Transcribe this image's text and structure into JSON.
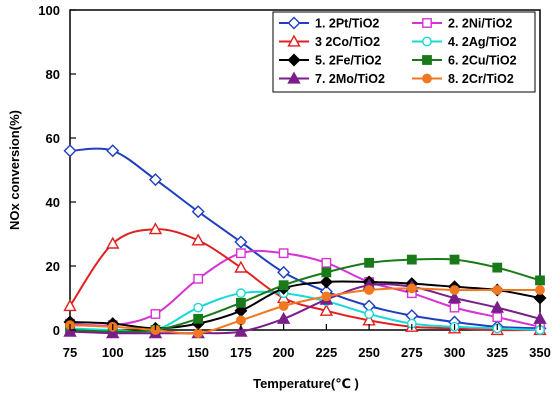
{
  "chart_data": {
    "type": "line",
    "title": "",
    "xlabel": "Temperature(℃ )",
    "ylabel": "NOx conversion(%)",
    "xlim": [
      75,
      350
    ],
    "ylim": [
      0,
      100
    ],
    "x_ticks": [
      "75",
      "100",
      "125",
      "150",
      "175",
      "200",
      "225",
      "250",
      "275",
      "300",
      "325",
      "350"
    ],
    "y_ticks": [
      "0",
      "20",
      "40",
      "60",
      "80",
      "100"
    ],
    "grid": false,
    "legend_position": "top-right",
    "x": [
      75,
      100,
      125,
      150,
      175,
      200,
      225,
      250,
      275,
      300,
      325,
      350
    ],
    "series": [
      {
        "name": "1. 2Pt/TiO2",
        "color": "#1f3fbf",
        "marker": "diamond-open",
        "values": [
          56,
          56,
          47,
          37,
          27.5,
          18,
          12,
          7.5,
          4.5,
          2.5,
          1,
          0.5
        ]
      },
      {
        "name": "2. 2Ni/TiO2",
        "color": "#d633d6",
        "marker": "square-open",
        "values": [
          2,
          1.5,
          5,
          16,
          24,
          24,
          21,
          15,
          11.5,
          7,
          4,
          1
        ]
      },
      {
        "name": "3 2Co/TiO2",
        "color": "#e02020",
        "marker": "triangle-open",
        "values": [
          7.5,
          27,
          31.5,
          28,
          19.5,
          10,
          6,
          3,
          1,
          0.5,
          0,
          0
        ]
      },
      {
        "name": "4. 2Ag/TiO2",
        "color": "#19d8d8",
        "marker": "circle-open",
        "values": [
          0.5,
          0,
          0,
          7,
          11.5,
          11.5,
          9,
          5,
          2,
          1,
          0.5,
          0
        ]
      },
      {
        "name": "5. 2Fe/TiO2",
        "color": "#000000",
        "marker": "diamond-filled",
        "values": [
          2.5,
          2,
          0.5,
          2,
          6,
          13,
          15,
          15,
          14.5,
          13.5,
          12.5,
          10
        ]
      },
      {
        "name": "6. 2Cu/TiO2",
        "color": "#1a7a1a",
        "marker": "square-filled",
        "values": [
          0,
          -0.5,
          0,
          3.5,
          8.5,
          14,
          18,
          21,
          22,
          22,
          19.5,
          15.5
        ]
      },
      {
        "name": "7. 2Mo/TiO2",
        "color": "#7a1f8a",
        "marker": "triangle-filled",
        "values": [
          -0.5,
          -1,
          -1,
          -1,
          -0.5,
          3.5,
          9.5,
          14,
          13.5,
          10,
          7,
          3.5
        ]
      },
      {
        "name": "8. 2Cr/TiO2",
        "color": "#f07820",
        "marker": "circle-filled",
        "values": [
          1.5,
          1,
          0,
          -1,
          3,
          7.5,
          10.5,
          12.5,
          13,
          12.5,
          12.5,
          12.5
        ]
      }
    ]
  }
}
